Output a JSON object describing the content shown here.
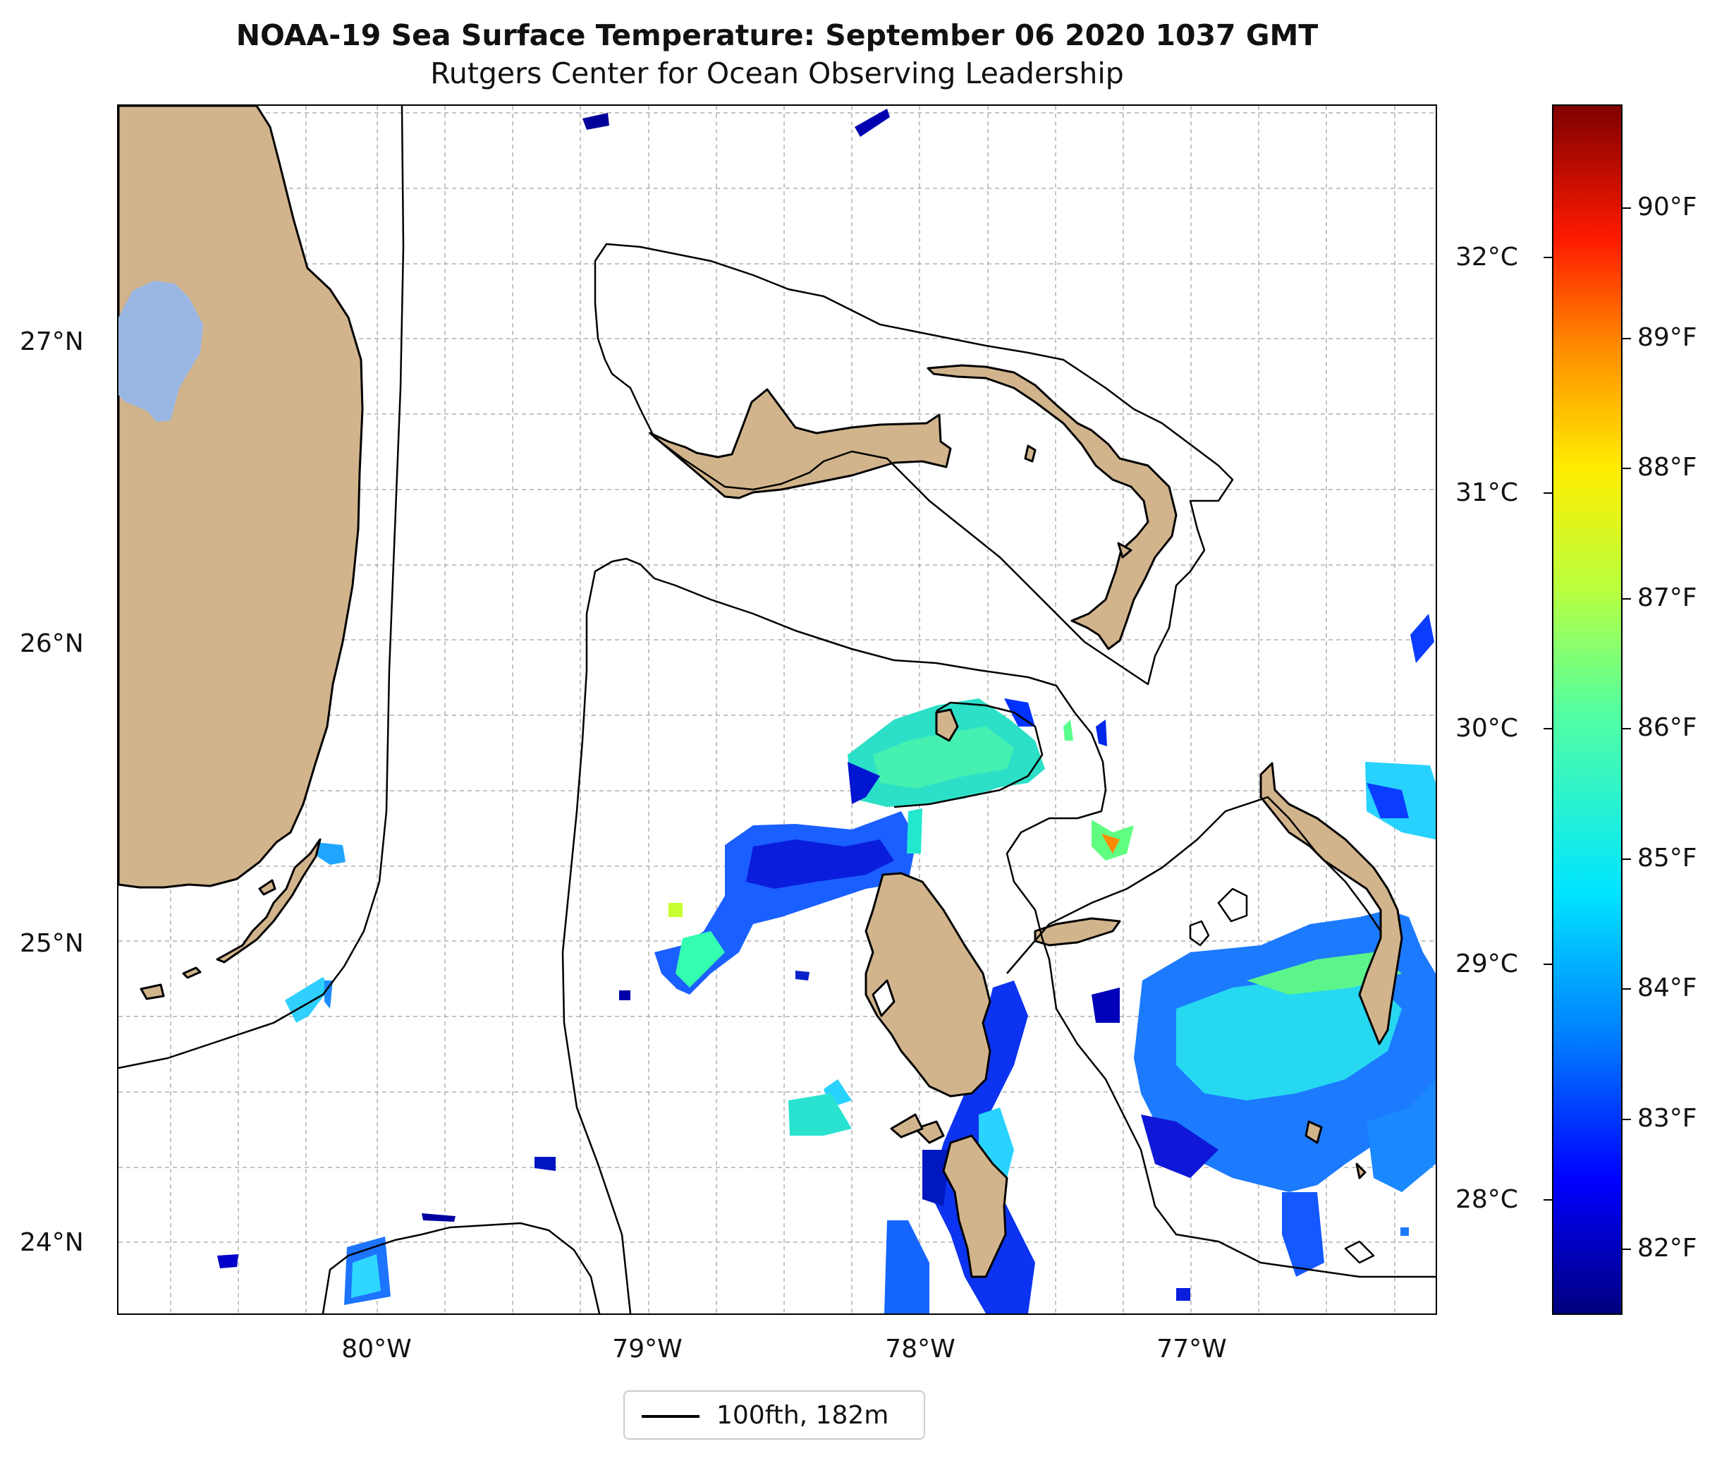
{
  "map": {
    "title_line1": "NOAA-19 Sea Surface Temperature: September 06 2020 1037 GMT",
    "title_line2": "Rutgers Center for Ocean Observing Leadership",
    "lat_labels": [
      "27°N",
      "26°N",
      "25°N",
      "24°N"
    ],
    "lon_labels": [
      "80°W",
      "79°W",
      "78°W",
      "77°W"
    ],
    "gridlines": true,
    "colors": {
      "land": "#d2b48c",
      "lake": "#9ab7e3",
      "ocean": "#ffffff",
      "coast": "#000000",
      "grid": "#b0b0b0"
    }
  },
  "colorbar": {
    "fahrenheit_labels": [
      "90°F",
      "89°F",
      "88°F",
      "87°F",
      "86°F",
      "85°F",
      "84°F",
      "83°F",
      "82°F"
    ],
    "celsius_labels": [
      "32°C",
      "31°C",
      "30°C",
      "29°C",
      "28°C"
    ],
    "colormap": "jet"
  },
  "legend": {
    "label": "100fth, 182m",
    "placement": "bottom-center"
  }
}
